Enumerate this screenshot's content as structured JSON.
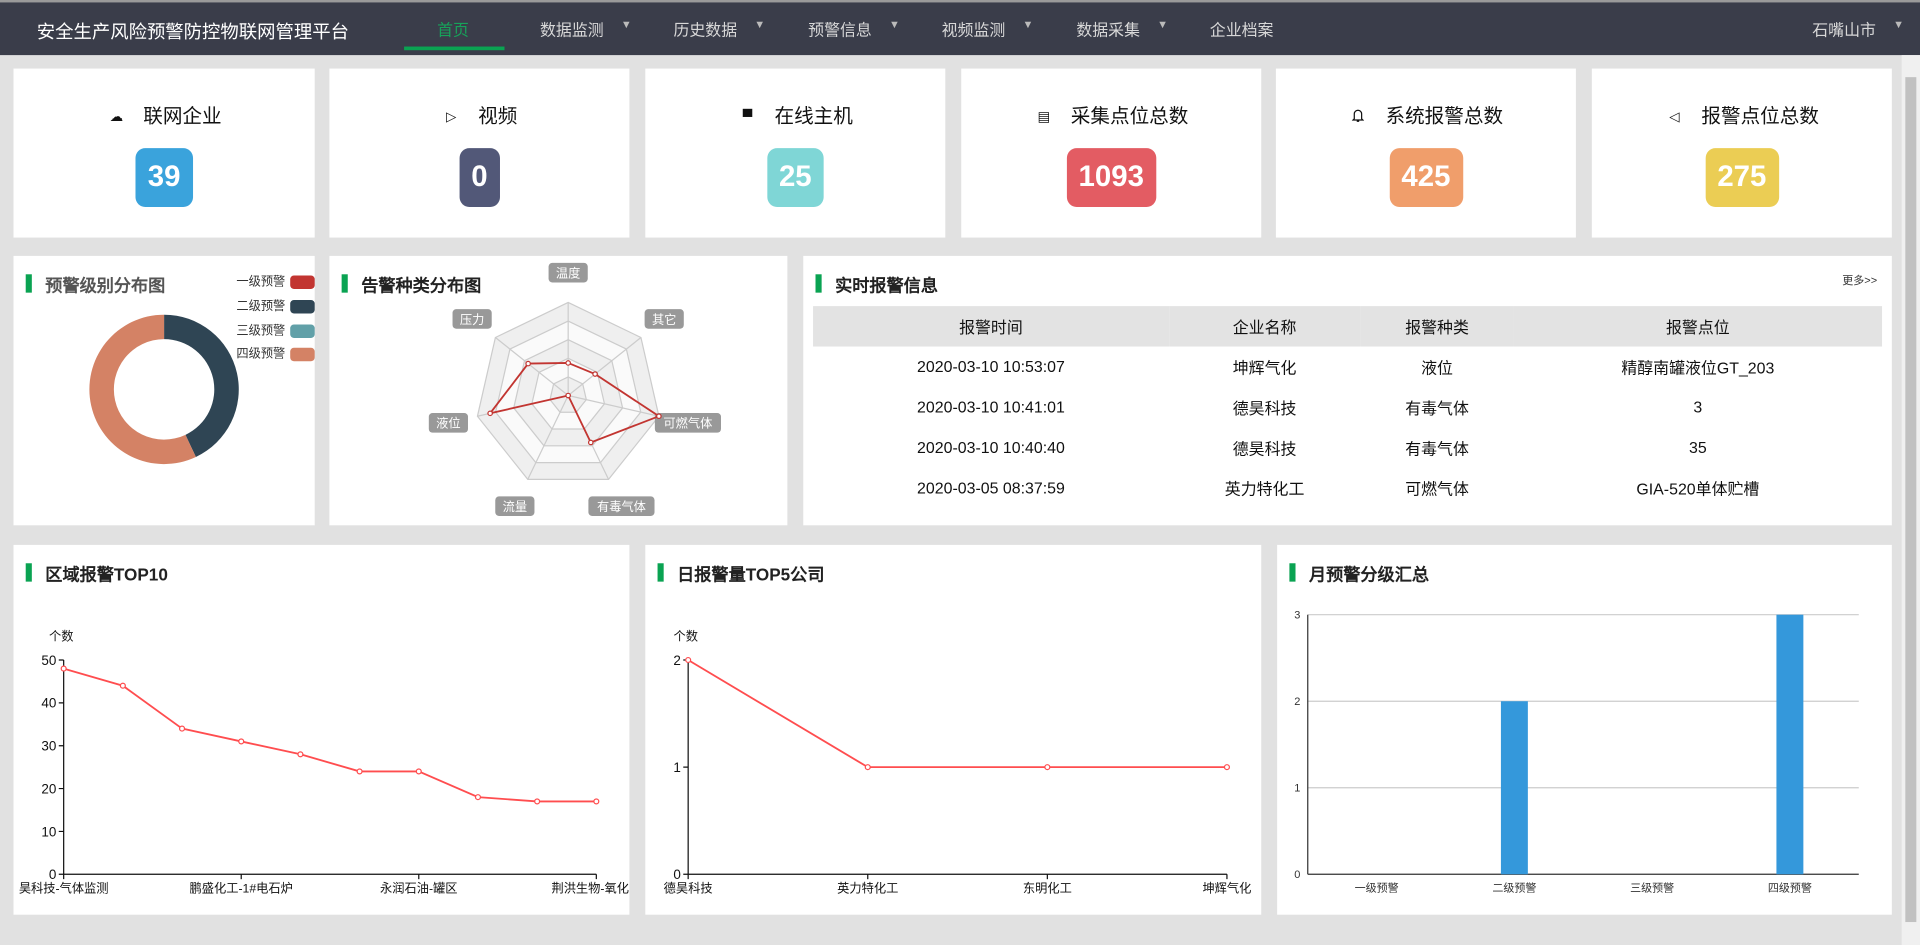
{
  "header": {
    "title": "安全生产风险预警防控物联网管理平台",
    "nav": [
      {
        "label": "首页",
        "active": true
      },
      {
        "label": "数据监测",
        "dropdown": true
      },
      {
        "label": "历史数据",
        "dropdown": true
      },
      {
        "label": "预警信息",
        "dropdown": true
      },
      {
        "label": "视频监测",
        "dropdown": true
      },
      {
        "label": "数据采集",
        "dropdown": true
      },
      {
        "label": "企业档案"
      }
    ],
    "region": "石嘴山市",
    "caret": "▼"
  },
  "stats": [
    {
      "label": "联网企业",
      "value": "39",
      "color": "#3aa3dc",
      "icon": "cloud-upload-icon"
    },
    {
      "label": "视频",
      "value": "0",
      "color": "#525878",
      "icon": "video-icon"
    },
    {
      "label": "在线主机",
      "value": "25",
      "color": "#7fd6d6",
      "icon": "window-icon"
    },
    {
      "label": "采集点位总数",
      "value": "1093",
      "color": "#e35c63",
      "icon": "clipboard-icon"
    },
    {
      "label": "系统报警总数",
      "value": "425",
      "color": "#f09e6b",
      "icon": "bell-icon"
    },
    {
      "label": "报警点位总数",
      "value": "275",
      "color": "#ebcd54",
      "icon": "speaker-icon"
    }
  ],
  "chart_data": [
    {
      "type": "pie",
      "title": "预警级别分布图",
      "donut": true,
      "legend": "top-right",
      "categories": [
        "一级预警",
        "二级预警",
        "三级预警",
        "四级预警"
      ],
      "colors": [
        "#c23531",
        "#2f4554",
        "#61a0a8",
        "#d48265"
      ],
      "values": [
        0,
        43,
        0,
        57
      ]
    },
    {
      "type": "radar",
      "title": "告警种类分布图",
      "indicators": [
        "温度",
        "其它",
        "可燃气体",
        "有毒气体",
        "流量",
        "液位",
        "压力"
      ],
      "values": [
        0.35,
        0.37,
        1.0,
        0.56,
        0,
        0.86,
        0.55
      ],
      "color": "#c23531"
    },
    {
      "type": "line",
      "title": "区域报警TOP10",
      "ylabel": "个数",
      "ylim": [
        0,
        50
      ],
      "yticks": [
        0,
        10,
        20,
        30,
        40,
        50
      ],
      "categories": [
        "昊科技-气体监测",
        "",
        "",
        "鹏盛化工-1#电石炉",
        "",
        "",
        "永润石油-罐区",
        "",
        "",
        "荆洪生物-氧化反"
      ],
      "values": [
        48,
        44,
        34,
        31,
        28,
        24,
        24,
        18,
        17,
        17
      ],
      "color": "#ff4d4f"
    },
    {
      "type": "line",
      "title": "日报警量TOP5公司",
      "ylabel": "个数",
      "ylim": [
        0,
        2
      ],
      "yticks": [
        0,
        1,
        2
      ],
      "categories": [
        "德昊科技",
        "英力特化工",
        "东明化工",
        "坤辉气化"
      ],
      "values": [
        2,
        1,
        1,
        1
      ],
      "color": "#ff4d4f"
    },
    {
      "type": "bar",
      "title": "月预警分级汇总",
      "ylim": [
        0,
        3
      ],
      "yticks": [
        0,
        1,
        2,
        3
      ],
      "grid": true,
      "categories": [
        "一级预警",
        "二级预警",
        "三级预警",
        "四级预警"
      ],
      "values": [
        0,
        2,
        0,
        3
      ],
      "color": "#3498db"
    }
  ],
  "alarms": {
    "title": "实时报警信息",
    "more": "更多>>",
    "columns": [
      "报警时间",
      "企业名称",
      "报警种类",
      "报警点位"
    ],
    "rows": [
      [
        "2020-03-10 10:53:07",
        "坤辉气化",
        "液位",
        "精醇南罐液位GT_203"
      ],
      [
        "2020-03-10 10:41:01",
        "德昊科技",
        "有毒气体",
        "3"
      ],
      [
        "2020-03-10 10:40:40",
        "德昊科技",
        "有毒气体",
        "35"
      ],
      [
        "2020-03-05 08:37:59",
        "英力特化工",
        "可燃气体",
        "GIA-520单体贮槽"
      ]
    ]
  }
}
